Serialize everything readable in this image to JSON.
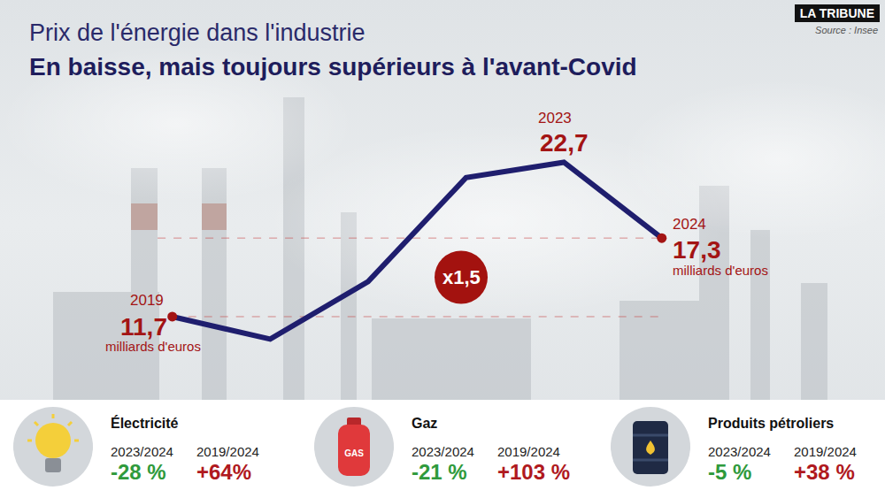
{
  "chart_data": {
    "type": "line",
    "title": "Prix de l'énergie dans l'industrie",
    "subtitle": "En baisse, mais toujours supérieurs à l'avant-Covid",
    "brand": "LA TRIBUNE",
    "source": "Source : Insee",
    "categories": [
      "2019",
      null,
      null,
      null,
      "2023",
      "2024"
    ],
    "values": [
      11.7,
      10.1,
      14.2,
      21.6,
      22.7,
      17.3
    ],
    "value_labels": [
      "11,7",
      null,
      null,
      null,
      "22,7",
      "17,3"
    ],
    "value_notes": [
      "milliards d'euros",
      null,
      null,
      null,
      null,
      "milliards d'euros"
    ],
    "data_labels": true,
    "tick_labels": false,
    "grid": false,
    "color": "#1f1e6e",
    "ylim": [
      5.9,
      26.7
    ],
    "ratio_label": "x1,5",
    "breakdown": [
      {
        "name": "Électricité",
        "changes": [
          {
            "period": "2023/2024",
            "value": -28,
            "label": "-28 %"
          },
          {
            "period": "2019/2024",
            "value": 64,
            "label": "+64%"
          }
        ]
      },
      {
        "name": "Gaz",
        "icon_label": "GAS",
        "changes": [
          {
            "period": "2023/2024",
            "value": -21,
            "label": "-21 %"
          },
          {
            "period": "2019/2024",
            "value": 103,
            "label": "+103 %"
          }
        ]
      },
      {
        "name": "Produits pétroliers",
        "changes": [
          {
            "period": "2023/2024",
            "value": -5,
            "label": "-5 %"
          },
          {
            "period": "2019/2024",
            "value": 38,
            "label": "+38 %"
          }
        ]
      }
    ]
  }
}
